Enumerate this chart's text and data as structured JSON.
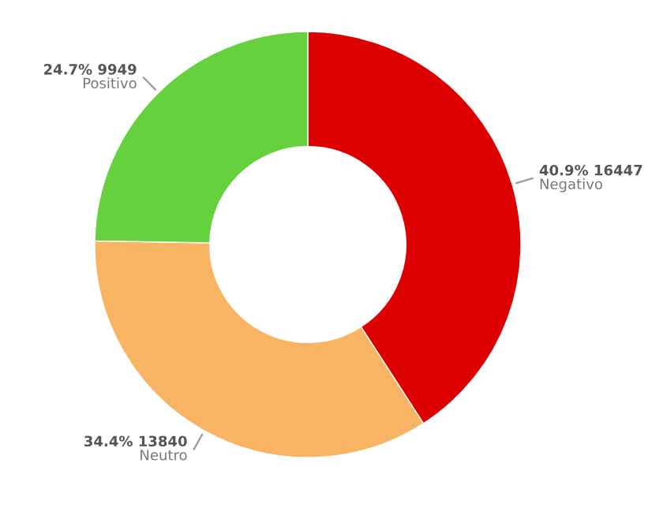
{
  "chart_data": {
    "type": "donut",
    "categories": [
      "Negativo",
      "Neutro",
      "Positivo"
    ],
    "values": [
      16447,
      13840,
      9949
    ],
    "colors": [
      "#dd0000",
      "#f8b462",
      "#66d13e"
    ],
    "value_labels": [
      "40.9% 16447",
      "34.4% 13840",
      "24.7% 9949"
    ]
  }
}
